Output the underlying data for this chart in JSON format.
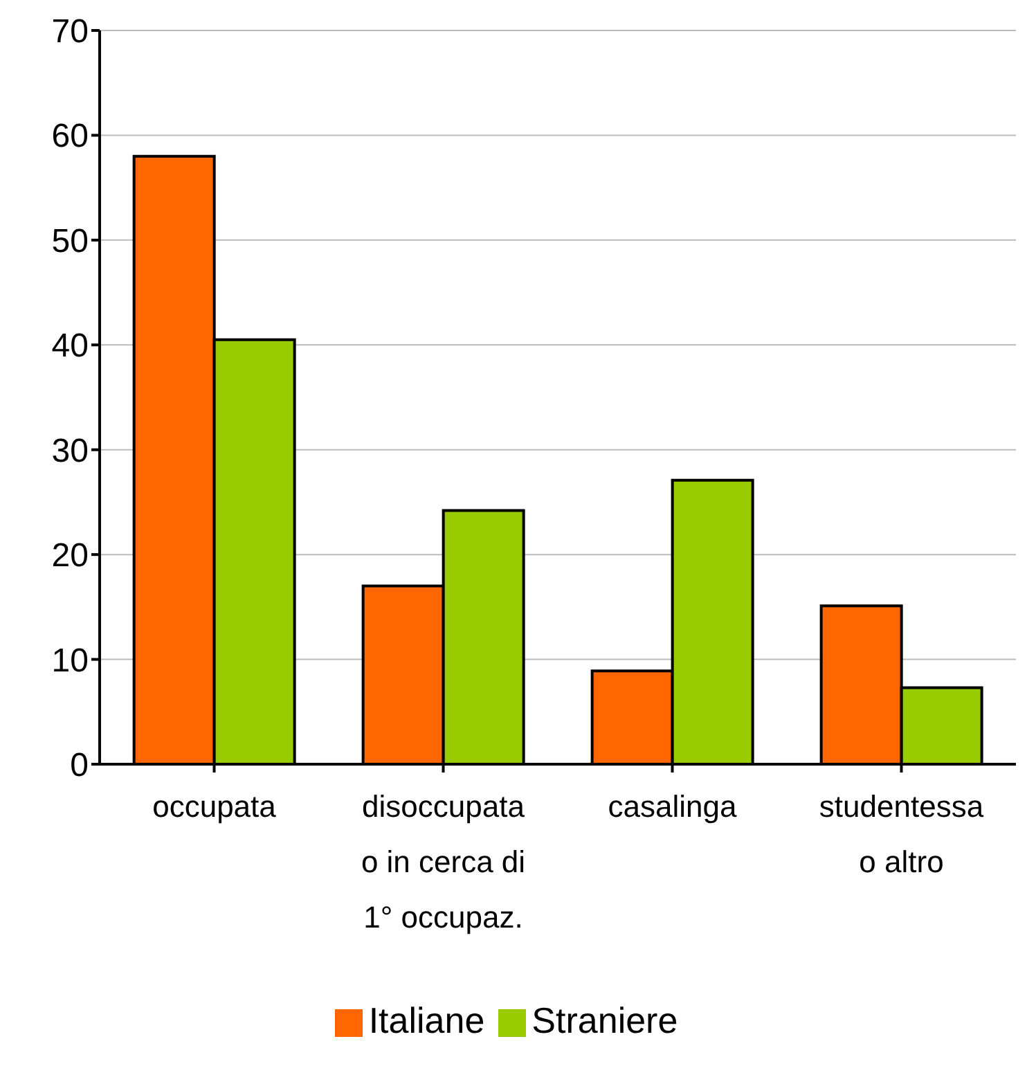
{
  "chart_data": {
    "type": "bar",
    "categories": [
      "occupata",
      "disoccupata\no in cerca di\n1° occupaz.",
      "casalinga",
      "studentessa\no altro"
    ],
    "series": [
      {
        "name": "Italiane",
        "color": "#ff6600",
        "values": [
          58,
          17,
          8.9,
          15.1
        ]
      },
      {
        "name": "Straniere",
        "color": "#99cc00",
        "values": [
          40.5,
          24.2,
          27.1,
          7.3
        ]
      }
    ],
    "ylim": [
      0,
      70
    ],
    "yticks": [
      0,
      10,
      20,
      30,
      40,
      50,
      60,
      70
    ],
    "grid": "y",
    "legend": "bottom"
  }
}
